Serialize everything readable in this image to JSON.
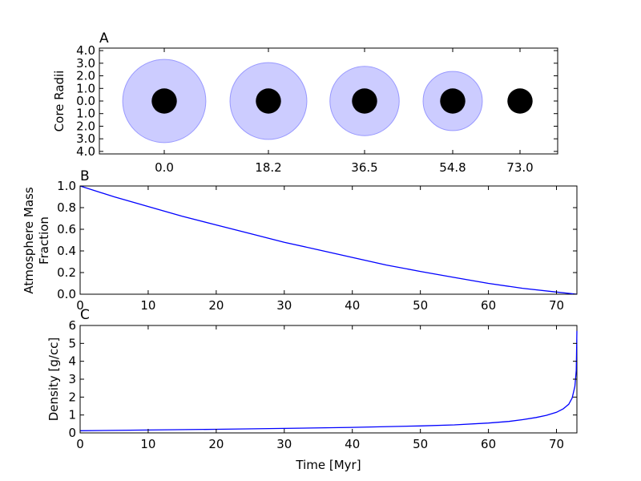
{
  "chart_data": [
    {
      "type": "scatter",
      "panel_label": "A",
      "ylabel": "Core Radii",
      "x_tick_labels": [
        "0.0",
        "18.2",
        "36.5",
        "54.8",
        "73.0"
      ],
      "y_tick_labels": [
        "4.0",
        "3.0",
        "2.0",
        "1.0",
        "0.0",
        "1.0",
        "2.0",
        "3.0",
        "4.0"
      ],
      "ylim": [
        -4.2,
        4.2
      ],
      "core_radius": 1.0,
      "core_color": "#000000",
      "atmosphere_color": "#ccccff",
      "atmosphere_edge_color": "#9999ff",
      "planets": [
        {
          "time": 0.0,
          "atmosphere_radius": 3.3
        },
        {
          "time": 18.2,
          "atmosphere_radius": 3.05
        },
        {
          "time": 36.5,
          "atmosphere_radius": 2.75
        },
        {
          "time": 54.8,
          "atmosphere_radius": 2.35
        },
        {
          "time": 73.0,
          "atmosphere_radius": 0
        }
      ]
    },
    {
      "type": "line",
      "panel_label": "B",
      "ylabel": "Atmosphere Mass\nFraction",
      "xlim": [
        0,
        73
      ],
      "ylim": [
        0,
        1.0
      ],
      "x_ticks": [
        "0",
        "10",
        "20",
        "30",
        "40",
        "50",
        "60",
        "70"
      ],
      "y_ticks": [
        "0.0",
        "0.2",
        "0.4",
        "0.6",
        "0.8",
        "1.0"
      ],
      "line_color": "#0000ff",
      "x": [
        0,
        5,
        10,
        15,
        20,
        25,
        30,
        35,
        40,
        45,
        50,
        55,
        60,
        65,
        70,
        73
      ],
      "y": [
        1.0,
        0.9,
        0.81,
        0.72,
        0.64,
        0.56,
        0.48,
        0.41,
        0.34,
        0.27,
        0.21,
        0.155,
        0.1,
        0.055,
        0.02,
        0.0
      ]
    },
    {
      "type": "line",
      "panel_label": "C",
      "ylabel": "Density [g/cc]",
      "xlabel": "Time [Myr]",
      "xlim": [
        0,
        73
      ],
      "ylim": [
        0,
        6
      ],
      "x_ticks": [
        "0",
        "10",
        "20",
        "30",
        "40",
        "50",
        "60",
        "70"
      ],
      "y_ticks": [
        "0",
        "1",
        "2",
        "3",
        "4",
        "5",
        "6"
      ],
      "line_color": "#0000ff",
      "x": [
        0,
        10,
        20,
        30,
        40,
        50,
        55,
        60,
        63,
        65,
        67,
        68.5,
        70,
        71,
        71.8,
        72.3,
        72.7,
        72.9,
        73.0
      ],
      "y": [
        0.12,
        0.16,
        0.2,
        0.25,
        0.31,
        0.39,
        0.45,
        0.55,
        0.64,
        0.74,
        0.86,
        0.98,
        1.15,
        1.35,
        1.6,
        1.95,
        2.6,
        3.5,
        5.7
      ]
    }
  ]
}
